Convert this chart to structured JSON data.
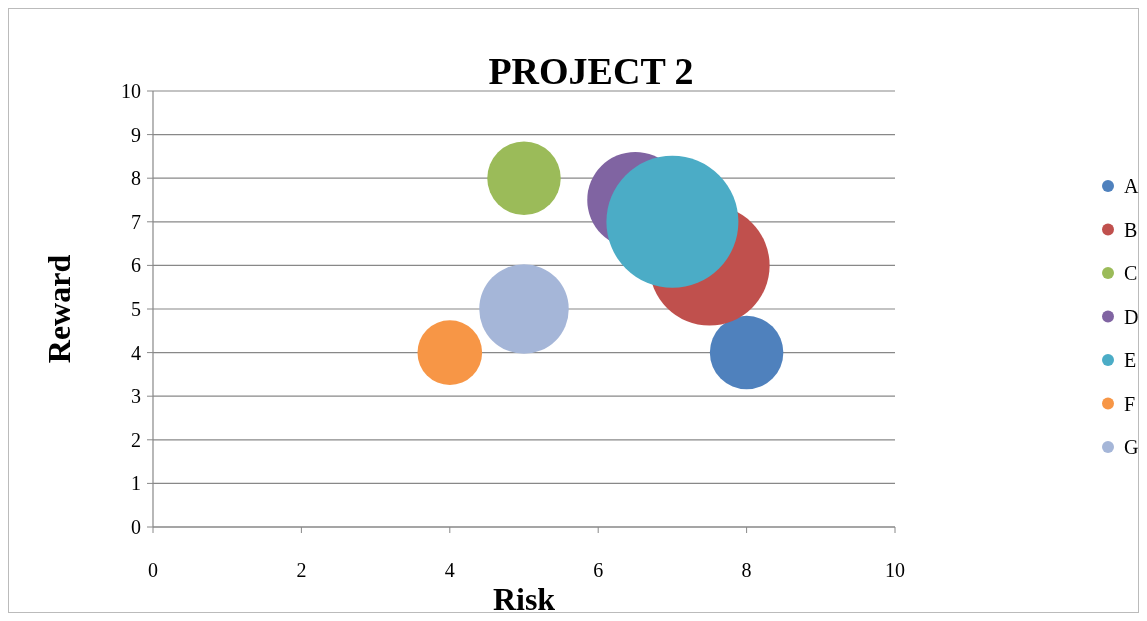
{
  "chart_data": {
    "type": "bubble",
    "title": "PROJECT 2",
    "xlabel": "Risk",
    "ylabel": "Reward",
    "xlim": [
      0,
      10
    ],
    "xticks": [
      0,
      2,
      4,
      6,
      8,
      10
    ],
    "ylim": [
      0,
      10
    ],
    "yticks": [
      0,
      1,
      2,
      3,
      4,
      5,
      6,
      7,
      8,
      9,
      10
    ],
    "grid": "y",
    "legend": "right",
    "series": [
      {
        "name": "A",
        "color": "#4f81bd",
        "x": [
          8
        ],
        "values": [
          4
        ],
        "sizes": [
          0.31
        ]
      },
      {
        "name": "B",
        "color": "#c0504d",
        "x": [
          7.5
        ],
        "values": [
          6
        ],
        "sizes": [
          0.83
        ]
      },
      {
        "name": "C",
        "color": "#9bbb59",
        "x": [
          5
        ],
        "values": [
          8
        ],
        "sizes": [
          0.31
        ]
      },
      {
        "name": "D",
        "color": "#8064a2",
        "x": [
          6.5
        ],
        "values": [
          7.5
        ],
        "sizes": [
          0.53
        ]
      },
      {
        "name": "E",
        "color": "#4bacc6",
        "x": [
          7
        ],
        "values": [
          7
        ],
        "sizes": [
          1
        ]
      },
      {
        "name": "F",
        "color": "#f79646",
        "x": [
          4
        ],
        "values": [
          4
        ],
        "sizes": [
          0.24
        ]
      },
      {
        "name": "G",
        "color": "#a5b6d8",
        "x": [
          5
        ],
        "values": [
          5
        ],
        "sizes": [
          0.46
        ]
      }
    ]
  }
}
